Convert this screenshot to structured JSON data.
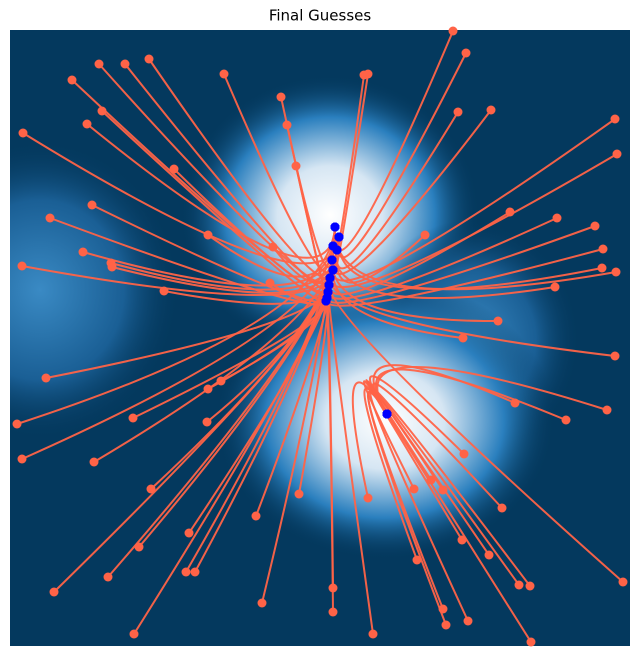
{
  "chart_data": {
    "type": "trajectories",
    "title": "Final Guesses",
    "xlim": [
      10,
      630
    ],
    "ylim": [
      646,
      30
    ],
    "line_color": "#ff6347",
    "start": {
      "color": "#ff6347",
      "x": [
        453,
        466,
        364,
        368,
        224,
        149,
        99,
        125,
        72,
        281,
        102,
        87,
        23,
        287,
        458,
        491,
        615,
        617,
        174,
        296,
        92,
        50,
        208,
        273,
        83,
        111,
        112,
        22,
        164,
        510,
        557,
        595,
        603,
        616,
        602,
        555,
        425,
        498,
        463,
        615,
        607,
        566,
        515,
        46,
        208,
        221,
        133,
        17,
        207,
        22,
        94,
        151,
        256,
        299,
        368,
        414,
        431,
        443,
        464,
        502,
        462,
        489,
        623,
        519,
        530,
        531,
        443,
        446,
        468,
        417,
        373,
        333,
        333,
        262,
        195,
        186,
        139,
        108,
        134,
        54,
        189,
        270
      ],
      "y": [
        31,
        53,
        75,
        74,
        74,
        59,
        64,
        64,
        80,
        97,
        111,
        124,
        133,
        125,
        112,
        110,
        119,
        154,
        169,
        166,
        205,
        218,
        235,
        247,
        252,
        263,
        267,
        266,
        291,
        212,
        218,
        226,
        249,
        272,
        268,
        287,
        235,
        321,
        338,
        356,
        410,
        420,
        403,
        378,
        389,
        381,
        418,
        424,
        422,
        459,
        462,
        489,
        516,
        494,
        498,
        489,
        480,
        490,
        454,
        508,
        540,
        555,
        582,
        585,
        586,
        642,
        609,
        625,
        621,
        560,
        634,
        588,
        612,
        603,
        572,
        572,
        547,
        577,
        634,
        592,
        533,
        283
      ]
    },
    "end": {
      "color": "#0000ff",
      "x": [
        335,
        339,
        333,
        337,
        332,
        333,
        330,
        329,
        328,
        327,
        326,
        335,
        339,
        333,
        337,
        332,
        333,
        330,
        329,
        328,
        327,
        326,
        335,
        339,
        333,
        337,
        332,
        333,
        330,
        329,
        328,
        327,
        326,
        335,
        339,
        333,
        337,
        332,
        333,
        330,
        387,
        387,
        387,
        329,
        328,
        327,
        326,
        335,
        339,
        333,
        337,
        332,
        333,
        330,
        387,
        387,
        387,
        387,
        387,
        387,
        387,
        387,
        329,
        387,
        387,
        387,
        387,
        387,
        387,
        387,
        328,
        327,
        326,
        335,
        339,
        333,
        337,
        332,
        333,
        330,
        329,
        328
      ],
      "y": [
        227,
        237,
        246,
        250,
        260,
        270,
        278,
        285,
        292,
        298,
        301,
        227,
        237,
        246,
        250,
        260,
        270,
        278,
        285,
        292,
        298,
        301,
        227,
        237,
        246,
        250,
        260,
        270,
        278,
        285,
        292,
        298,
        301,
        227,
        237,
        246,
        250,
        260,
        270,
        278,
        414,
        414,
        414,
        285,
        292,
        298,
        301,
        227,
        237,
        246,
        250,
        260,
        270,
        278,
        414,
        414,
        414,
        414,
        414,
        414,
        414,
        414,
        285,
        414,
        414,
        414,
        414,
        414,
        414,
        414,
        292,
        298,
        301,
        227,
        237,
        246,
        250,
        260,
        270,
        278,
        285,
        292
      ]
    }
  }
}
